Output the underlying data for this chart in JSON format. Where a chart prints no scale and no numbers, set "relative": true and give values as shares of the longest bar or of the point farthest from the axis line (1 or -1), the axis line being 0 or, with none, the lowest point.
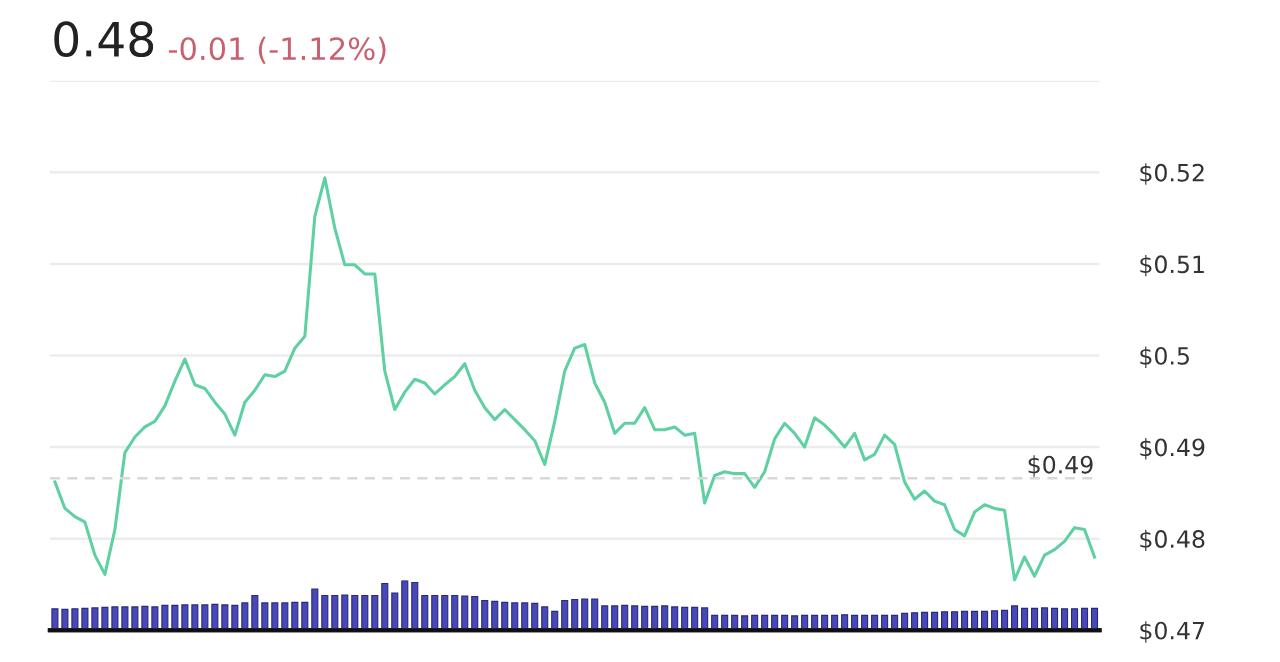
{
  "chart_data": [
    {
      "type": "line",
      "title": "0.48",
      "subtitle": "-0.01 (-1.12%)",
      "categories": [
        null,
        null,
        null,
        null,
        null,
        null,
        null,
        null,
        null,
        null,
        null,
        null,
        null,
        null,
        null,
        null,
        null,
        null,
        null,
        null,
        null,
        null,
        null,
        null,
        null,
        null,
        null,
        null,
        null,
        null,
        null,
        null,
        null,
        null,
        null,
        null,
        null,
        null,
        null,
        null,
        null,
        null,
        null,
        null,
        null,
        null,
        null,
        null,
        null,
        null,
        null,
        null,
        null,
        null,
        null,
        null,
        null,
        null,
        null,
        null,
        null,
        null,
        null,
        null,
        null,
        null,
        null,
        null,
        null,
        null,
        null,
        null,
        null,
        null,
        null,
        null,
        null,
        null,
        null,
        null,
        null,
        null,
        null,
        null,
        null,
        null,
        null,
        null,
        null,
        null,
        null,
        null,
        null,
        null,
        null,
        null,
        null,
        null,
        null,
        null,
        null,
        null,
        null,
        null,
        null
      ],
      "series": [
        {
          "color": "#5fd0a2",
          "values": [
            0.4862,
            0.4833,
            0.4824,
            0.4818,
            0.4782,
            0.4761,
            0.481,
            0.4894,
            0.4911,
            0.4922,
            0.4928,
            0.4945,
            0.4972,
            0.4996,
            0.4968,
            0.4964,
            0.4949,
            0.4936,
            0.4913,
            0.4949,
            0.4962,
            0.4979,
            0.4977,
            0.4983,
            0.5008,
            0.5021,
            0.5152,
            0.5194,
            0.5139,
            0.5099,
            0.5099,
            0.5089,
            0.5089,
            0.4983,
            0.4941,
            0.496,
            0.4974,
            0.497,
            0.4958,
            0.4968,
            0.4977,
            0.4991,
            0.4962,
            0.4943,
            0.493,
            0.4941,
            0.493,
            0.4919,
            0.4907,
            0.4881,
            0.4928,
            0.4983,
            0.5008,
            0.5012,
            0.497,
            0.4949,
            0.4915,
            0.4926,
            0.4926,
            0.4943,
            0.4919,
            0.4919,
            0.4922,
            0.4913,
            0.4915,
            0.4839,
            0.4869,
            0.4873,
            0.4871,
            0.4871,
            0.4856,
            0.4873,
            0.4909,
            0.4926,
            0.4915,
            0.49,
            0.4932,
            0.4924,
            0.4913,
            0.49,
            0.4915,
            0.4886,
            0.4892,
            0.4913,
            0.4903,
            0.4862,
            0.4843,
            0.4852,
            0.4841,
            0.4837,
            0.481,
            0.4803,
            0.4829,
            0.4837,
            0.4833,
            0.4831,
            0.4755,
            0.478,
            0.4759,
            0.4782,
            0.4788,
            0.4797,
            0.4812,
            0.481,
            0.478
          ]
        }
      ],
      "ylim": [
        0.47,
        0.53
      ],
      "yticks": [
        {
          "value": 0.47,
          "label": "$0.47"
        },
        {
          "value": 0.48,
          "label": "$0.48"
        },
        {
          "value": 0.49,
          "label": "$0.49"
        },
        {
          "value": 0.5,
          "label": "$0.5"
        },
        {
          "value": 0.51,
          "label": "$0.51"
        },
        {
          "value": 0.52,
          "label": "$0.52"
        },
        {
          "value": 0.53,
          "label": null
        }
      ],
      "ref_lines": [
        {
          "axis": "y",
          "value": 0.4866,
          "label": "$0.49",
          "color": "#d8d8d8",
          "line_style": "dashed"
        }
      ],
      "grid": "y",
      "tick_labels": "y"
    },
    {
      "type": "bar",
      "relative": true,
      "tick_labels": false,
      "color": "#4848b8",
      "categories": [
        null,
        null,
        null,
        null,
        null,
        null,
        null,
        null,
        null,
        null,
        null,
        null,
        null,
        null,
        null,
        null,
        null,
        null,
        null,
        null,
        null,
        null,
        null,
        null,
        null,
        null,
        null,
        null,
        null,
        null,
        null,
        null,
        null,
        null,
        null,
        null,
        null,
        null,
        null,
        null,
        null,
        null,
        null,
        null,
        null,
        null,
        null,
        null,
        null,
        null,
        null,
        null,
        null,
        null,
        null,
        null,
        null,
        null,
        null,
        null,
        null,
        null,
        null,
        null,
        null,
        null,
        null,
        null,
        null,
        null,
        null,
        null,
        null,
        null,
        null,
        null,
        null,
        null,
        null,
        null,
        null,
        null,
        null,
        null,
        null,
        null,
        null,
        null,
        null,
        null,
        null,
        null,
        null,
        null,
        null,
        null,
        null,
        null,
        null,
        null,
        null,
        null,
        null,
        null,
        null
      ],
      "values": [
        0.43,
        0.42,
        0.43,
        0.44,
        0.45,
        0.46,
        0.47,
        0.47,
        0.47,
        0.48,
        0.47,
        0.5,
        0.5,
        0.51,
        0.51,
        0.51,
        0.52,
        0.51,
        0.5,
        0.55,
        0.7,
        0.55,
        0.55,
        0.55,
        0.56,
        0.56,
        0.83,
        0.7,
        0.7,
        0.71,
        0.7,
        0.7,
        0.7,
        0.94,
        0.75,
        1.0,
        0.96,
        0.7,
        0.7,
        0.7,
        0.7,
        0.69,
        0.68,
        0.6,
        0.58,
        0.56,
        0.55,
        0.55,
        0.54,
        0.47,
        0.38,
        0.6,
        0.62,
        0.63,
        0.63,
        0.49,
        0.49,
        0.5,
        0.49,
        0.48,
        0.48,
        0.49,
        0.47,
        0.46,
        0.46,
        0.45,
        0.3,
        0.3,
        0.3,
        0.29,
        0.3,
        0.3,
        0.3,
        0.3,
        0.29,
        0.3,
        0.3,
        0.3,
        0.3,
        0.31,
        0.3,
        0.3,
        0.3,
        0.3,
        0.3,
        0.34,
        0.35,
        0.36,
        0.36,
        0.37,
        0.37,
        0.38,
        0.38,
        0.38,
        0.39,
        0.4,
        0.49,
        0.44,
        0.44,
        0.45,
        0.44,
        0.43,
        0.43,
        0.44,
        0.44
      ]
    }
  ]
}
